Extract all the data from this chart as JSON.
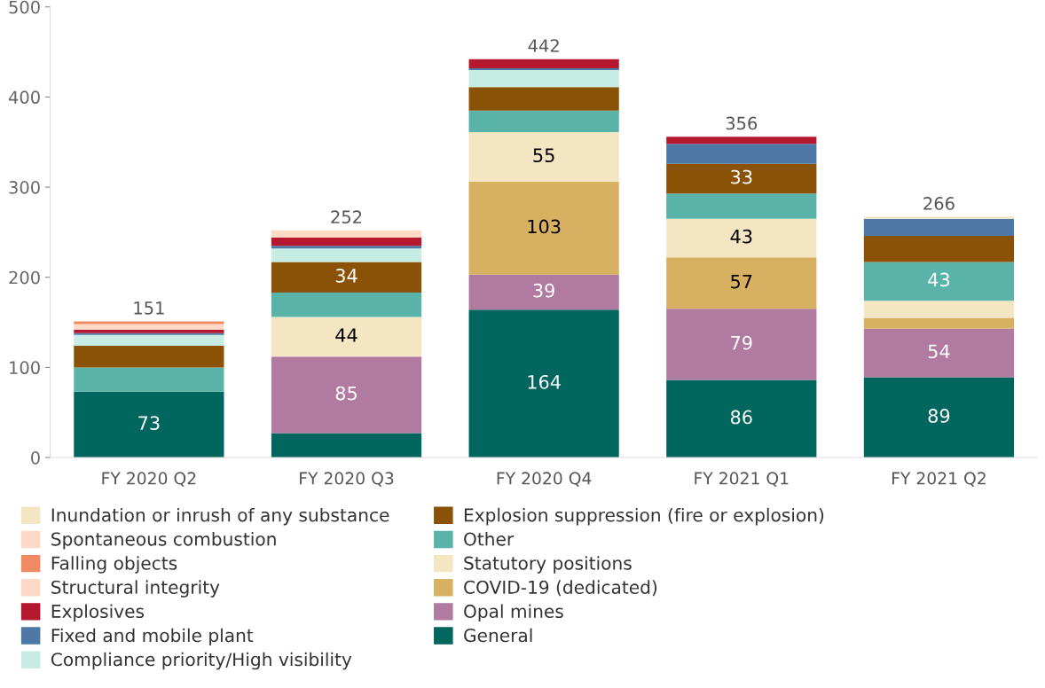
{
  "chart_data": {
    "type": "bar",
    "stacked": true,
    "categories": [
      "FY 2020 Q2",
      "FY 2020 Q3",
      "FY 2020 Q4",
      "FY 2021 Q1",
      "FY 2021 Q2"
    ],
    "ylim": [
      0,
      500
    ],
    "yticks": [
      0,
      100,
      200,
      300,
      400,
      500
    ],
    "grid": false,
    "legend": "bottom",
    "totals": [
      "151",
      "252",
      "442",
      "356",
      "266"
    ],
    "series": [
      {
        "name": "General",
        "color": "#00665e",
        "values": [
          73,
          27,
          164,
          86,
          89
        ],
        "value_labels": [
          "73",
          null,
          "164",
          "86",
          "89"
        ]
      },
      {
        "name": "Opal mines",
        "color": "#b07aa1",
        "values": [
          null,
          85,
          39,
          79,
          54
        ],
        "value_labels": [
          null,
          "85",
          "39",
          "79",
          "54"
        ]
      },
      {
        "name": "COVID-19 (dedicated)",
        "color": "#d8b062",
        "values": [
          null,
          null,
          103,
          57,
          12
        ],
        "value_labels": [
          null,
          null,
          "103",
          "57",
          null
        ]
      },
      {
        "name": "Statutory positions",
        "color": "#f5e6c3",
        "values": [
          null,
          44,
          55,
          43,
          19
        ],
        "value_labels": [
          null,
          "44",
          "55",
          "43",
          null
        ]
      },
      {
        "name": "Other",
        "color": "#59b3a9",
        "values": [
          27,
          27,
          24,
          28,
          43
        ],
        "value_labels": [
          null,
          null,
          null,
          null,
          "43"
        ]
      },
      {
        "name": "Explosion suppression (fire or explosion)",
        "color": "#8a5206",
        "values": [
          24,
          34,
          26,
          33,
          29
        ],
        "value_labels": [
          null,
          "34",
          null,
          "33",
          null
        ]
      },
      {
        "name": "Compliance priority/High visibility",
        "color": "#c6ece4",
        "values": [
          12,
          15,
          19,
          null,
          null
        ]
      },
      {
        "name": "Fixed and mobile plant",
        "color": "#4e79a7",
        "values": [
          2,
          3,
          2,
          22,
          19
        ]
      },
      {
        "name": "Explosives",
        "color": "#b5172e",
        "values": [
          4,
          9,
          10,
          8,
          null
        ]
      },
      {
        "name": "Structural integrity",
        "color": "#fddac5",
        "values": [
          6,
          8,
          null,
          null,
          null
        ]
      },
      {
        "name": "Falling objects",
        "color": "#ef8a62",
        "values": [
          3,
          null,
          null,
          null,
          null
        ]
      },
      {
        "name": "Spontaneous combustion",
        "color": "#fddac5",
        "values": [
          null,
          null,
          null,
          null,
          null
        ]
      },
      {
        "name": "Inundation or inrush of any substance",
        "color": "#f5e6c3",
        "values": [
          null,
          null,
          null,
          null,
          2
        ]
      }
    ]
  }
}
